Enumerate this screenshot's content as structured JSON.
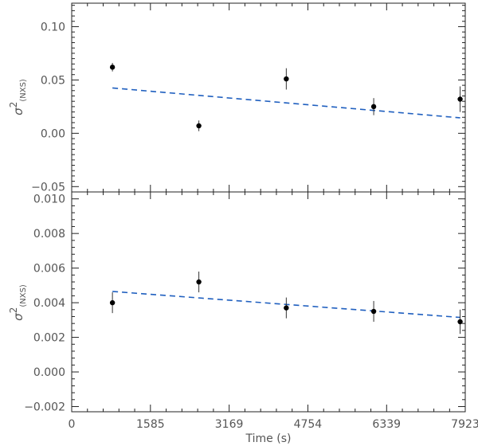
{
  "chart_data": [
    {
      "type": "scatter",
      "panel": "top",
      "xlabel": "",
      "ylabel_symbol": "σ",
      "ylabel_sup": "2",
      "ylabel_sub": "(NXS)",
      "xlim": [
        0,
        7923
      ],
      "ylim": [
        -0.055,
        0.122
      ],
      "yticks": [
        -0.05,
        0.0,
        0.05,
        0.1
      ],
      "ytick_labels": [
        "−0.05",
        "0.00",
        "0.05",
        "0.10"
      ],
      "y_minor_step": 0.005,
      "points": [
        {
          "x": 820,
          "y": 0.062,
          "err": 0.004
        },
        {
          "x": 2560,
          "y": 0.007,
          "err": 0.005
        },
        {
          "x": 4320,
          "y": 0.051,
          "err": 0.01
        },
        {
          "x": 6080,
          "y": 0.025,
          "err": 0.008
        },
        {
          "x": 7820,
          "y": 0.032,
          "err": 0.012
        }
      ],
      "fit_line": {
        "x": [
          820,
          7820
        ],
        "y": [
          0.0425,
          0.0145
        ],
        "color": "#1f5fbf",
        "style": "dashed"
      }
    },
    {
      "type": "scatter",
      "panel": "bottom",
      "xlabel": "Time (s)",
      "ylabel_symbol": "σ",
      "ylabel_sup": "2",
      "ylabel_sub": "(NXS)",
      "xlim": [
        0,
        7923
      ],
      "ylim": [
        -0.0023,
        0.0104
      ],
      "xticks": [
        0,
        1585,
        3169,
        4754,
        6339,
        7923
      ],
      "xtick_labels": [
        "0",
        "1585",
        "3169",
        "4754",
        "6339",
        "7923"
      ],
      "yticks": [
        -0.002,
        0.0,
        0.002,
        0.004,
        0.006,
        0.008,
        0.01
      ],
      "ytick_labels": [
        "−0.002",
        "0.000",
        "0.002",
        "0.004",
        "0.006",
        "0.008",
        "0.010"
      ],
      "y_minor_step": 0.0004,
      "points": [
        {
          "x": 820,
          "y": 0.004,
          "err": 0.0006
        },
        {
          "x": 2560,
          "y": 0.0052,
          "err": 0.0006
        },
        {
          "x": 4320,
          "y": 0.0037,
          "err": 0.0006
        },
        {
          "x": 6080,
          "y": 0.0035,
          "err": 0.0006
        },
        {
          "x": 7820,
          "y": 0.0029,
          "err": 0.0007
        }
      ],
      "fit_line": {
        "x": [
          820,
          7820
        ],
        "y": [
          0.00465,
          0.00315
        ],
        "color": "#1f5fbf",
        "style": "dashed"
      }
    }
  ]
}
